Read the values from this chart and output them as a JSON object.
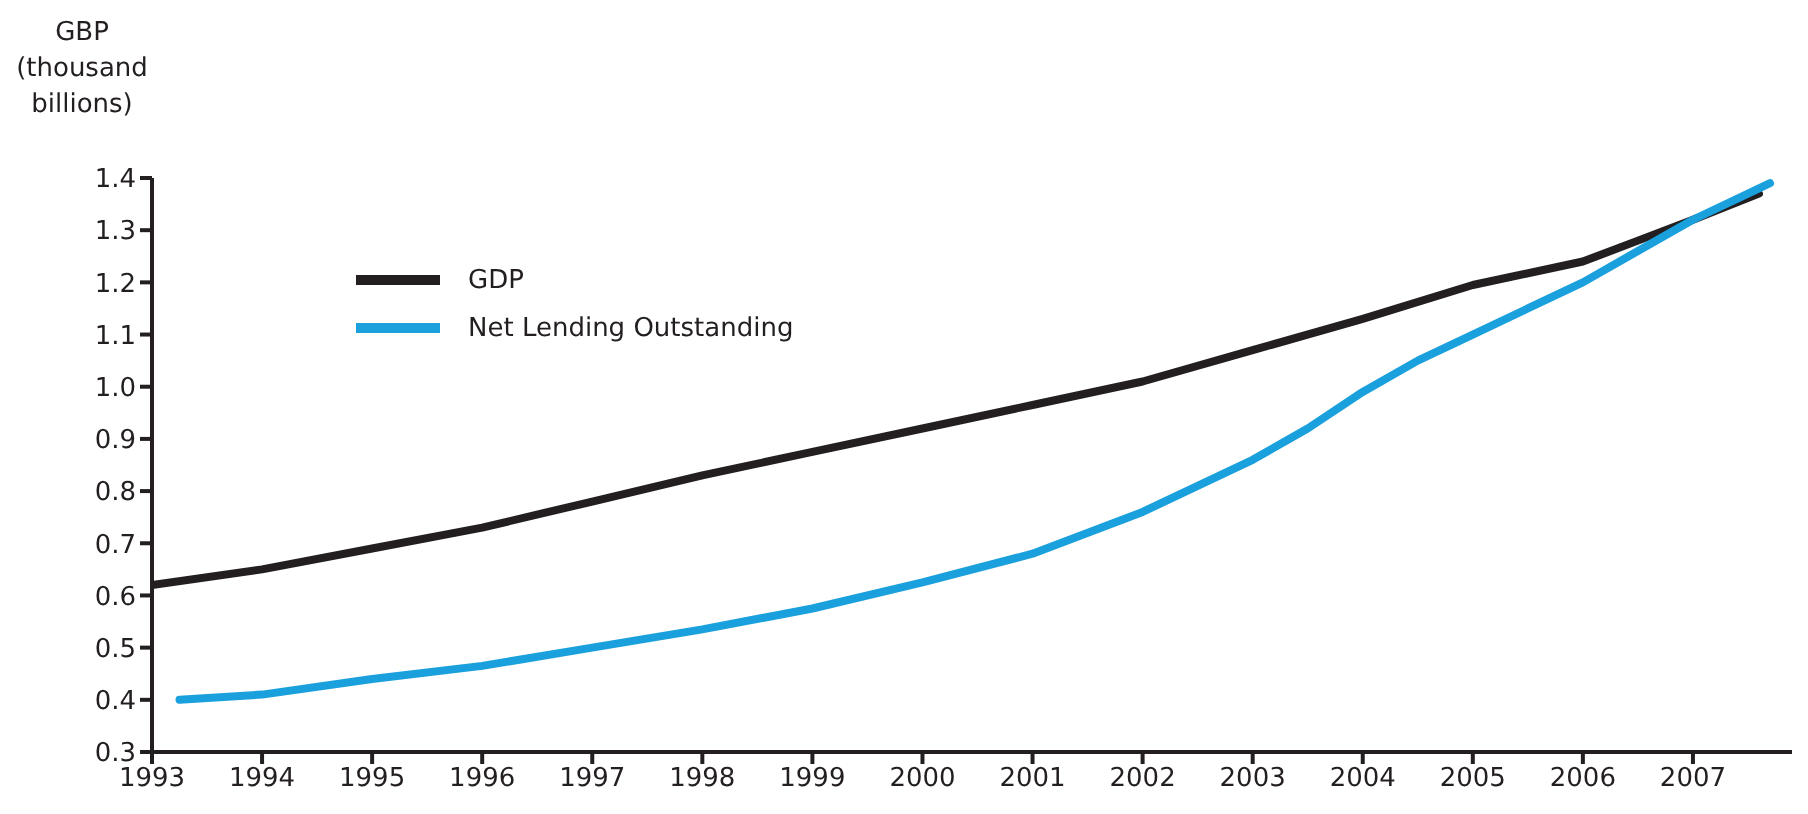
{
  "chart_data": {
    "type": "line",
    "ylabel": "GBP (thousand billions)",
    "xlim": [
      1993,
      2007.9
    ],
    "xticks": [
      1993,
      1994,
      1995,
      1996,
      1997,
      1998,
      1999,
      2000,
      2001,
      2002,
      2003,
      2004,
      2005,
      2006,
      2007
    ],
    "ylim": [
      0.3,
      1.4
    ],
    "yticks": [
      {
        "value": 0.3,
        "label": "0.3"
      },
      {
        "value": 0.4,
        "label": "0.4"
      },
      {
        "value": 0.5,
        "label": "0.5"
      },
      {
        "value": 0.6,
        "label": "0.6"
      },
      {
        "value": 0.7,
        "label": "0.7"
      },
      {
        "value": 0.8,
        "label": "0.8"
      },
      {
        "value": 0.9,
        "label": "0.9"
      },
      {
        "value": 1.0,
        "label": "1.0"
      },
      {
        "value": 1.1,
        "label": "1.1"
      },
      {
        "value": 1.2,
        "label": "1.2"
      },
      {
        "value": 1.3,
        "label": "1.3"
      },
      {
        "value": 1.4,
        "label": "1.4"
      }
    ],
    "grid": false,
    "legend": "top left",
    "marker": "none",
    "line_style": "solid",
    "series": [
      {
        "name": "GDP",
        "color": "#231f20",
        "x": [
          1993,
          1994,
          1995,
          1996,
          1997,
          1998,
          1999,
          2000,
          2001,
          2002,
          2003,
          2004,
          2005,
          2006,
          2006.5,
          2007,
          2007.6
        ],
        "values": [
          0.62,
          0.65,
          0.69,
          0.73,
          0.78,
          0.83,
          0.875,
          0.92,
          0.965,
          1.01,
          1.07,
          1.13,
          1.195,
          1.24,
          1.28,
          1.32,
          1.37
        ]
      },
      {
        "name": "Net Lending Outstanding",
        "color": "#1aa0dc",
        "x": [
          1993.25,
          1994,
          1995,
          1996,
          1997,
          1998,
          1999,
          2000,
          2001,
          2002,
          2002.5,
          2003,
          2003.5,
          2004,
          2004.5,
          2005,
          2005.5,
          2006,
          2006.5,
          2007,
          2007.5,
          2007.7
        ],
        "values": [
          0.4,
          0.41,
          0.44,
          0.465,
          0.5,
          0.535,
          0.575,
          0.625,
          0.68,
          0.76,
          0.81,
          0.86,
          0.92,
          0.99,
          1.05,
          1.1,
          1.15,
          1.2,
          1.26,
          1.32,
          1.37,
          1.39
        ]
      }
    ]
  }
}
